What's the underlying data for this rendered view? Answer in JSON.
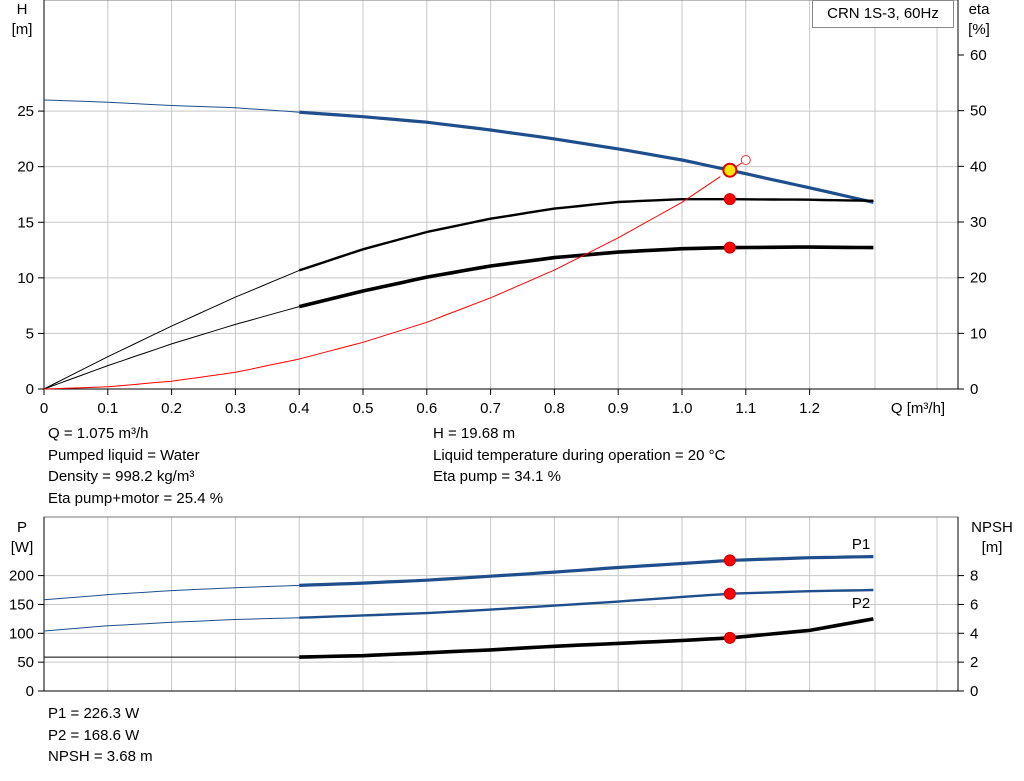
{
  "model_label": "CRN 1S-3, 60Hz",
  "chart_data": [
    {
      "type": "line",
      "name": "performance",
      "xlabel": "Q [m³/h]",
      "ylabel_left": [
        "H",
        "[m]"
      ],
      "ylabel_right": [
        "eta",
        "[%]"
      ],
      "xlim": [
        0,
        1.4
      ],
      "ylim_left": [
        0,
        30
      ],
      "ylim_right": [
        0,
        65
      ],
      "x_ticks": [
        "0",
        "0.1",
        "0.2",
        "0.3",
        "0.4",
        "0.5",
        "0.6",
        "0.7",
        "0.8",
        "0.9",
        "1.0",
        "1.1",
        "1.2"
      ],
      "y_ticks_left": [
        "0",
        "5",
        "10",
        "15",
        "20",
        "25"
      ],
      "y_ticks_right": [
        "0",
        "10",
        "20",
        "30",
        "40",
        "50",
        "60"
      ],
      "grid": true,
      "series": [
        {
          "axis": "left",
          "color": "#1f4e8c",
          "values": [
            [
              0,
              26.0
            ],
            [
              0.1,
              25.8
            ],
            [
              0.2,
              25.5
            ],
            [
              0.3,
              25.3
            ],
            [
              0.4,
              24.9
            ],
            [
              0.5,
              24.5
            ],
            [
              0.6,
              24.0
            ],
            [
              0.7,
              23.3
            ],
            [
              0.8,
              22.5
            ],
            [
              0.9,
              21.6
            ],
            [
              1.0,
              20.6
            ],
            [
              1.075,
              19.68
            ],
            [
              1.2,
              18.1
            ],
            [
              1.3,
              16.8
            ]
          ]
        },
        {
          "axis": "right",
          "color": "#000000",
          "values": [
            [
              0,
              0
            ],
            [
              0.1,
              5.8
            ],
            [
              0.2,
              11.3
            ],
            [
              0.3,
              16.5
            ],
            [
              0.4,
              21.3
            ],
            [
              0.5,
              25.1
            ],
            [
              0.6,
              28.2
            ],
            [
              0.7,
              30.6
            ],
            [
              0.8,
              32.4
            ],
            [
              0.9,
              33.6
            ],
            [
              1.0,
              34.1
            ],
            [
              1.075,
              34.1
            ],
            [
              1.2,
              34.0
            ],
            [
              1.3,
              33.8
            ]
          ]
        },
        {
          "axis": "right",
          "color": "#000000",
          "values": [
            [
              0,
              0
            ],
            [
              0.1,
              4.2
            ],
            [
              0.2,
              8.1
            ],
            [
              0.3,
              11.6
            ],
            [
              0.4,
              14.8
            ],
            [
              0.5,
              17.6
            ],
            [
              0.6,
              20.1
            ],
            [
              0.7,
              22.1
            ],
            [
              0.8,
              23.6
            ],
            [
              0.9,
              24.6
            ],
            [
              1.0,
              25.2
            ],
            [
              1.075,
              25.4
            ],
            [
              1.2,
              25.5
            ],
            [
              1.3,
              25.4
            ]
          ]
        },
        {
          "axis": "left",
          "color": "#ff0000",
          "values": [
            [
              0,
              0
            ],
            [
              0.1,
              0.2
            ],
            [
              0.2,
              0.7
            ],
            [
              0.3,
              1.5
            ],
            [
              0.4,
              2.7
            ],
            [
              0.5,
              4.2
            ],
            [
              0.6,
              6.0
            ],
            [
              0.7,
              8.2
            ],
            [
              0.8,
              10.7
            ],
            [
              0.9,
              13.6
            ],
            [
              1.0,
              16.8
            ],
            [
              1.075,
              19.68
            ]
          ]
        }
      ],
      "markers": [
        {
          "axis": "left",
          "x": 1.075,
          "y": 19.68,
          "kind": "duty-point"
        },
        {
          "axis": "right",
          "x": 1.075,
          "y": 34.1,
          "kind": "point"
        },
        {
          "axis": "right",
          "x": 1.075,
          "y": 25.4,
          "kind": "point"
        },
        {
          "axis": "left",
          "x": 1.1,
          "y": 20.6,
          "kind": "open-circle"
        }
      ]
    },
    {
      "type": "line",
      "name": "power-npsh",
      "ylabel_left": [
        "P",
        "[W]"
      ],
      "ylabel_right": [
        "NPSH",
        "[m]"
      ],
      "xlim": [
        0,
        1.4
      ],
      "ylim_left": [
        0,
        250
      ],
      "ylim_right": [
        0,
        10
      ],
      "y_ticks_left": [
        "0",
        "50",
        "100",
        "150",
        "200"
      ],
      "y_ticks_right": [
        "0",
        "2",
        "4",
        "6",
        "8"
      ],
      "grid": true,
      "series": [
        {
          "name": "P1",
          "axis": "left",
          "color": "#1f4e8c",
          "values": [
            [
              0,
              158
            ],
            [
              0.1,
              167
            ],
            [
              0.2,
              174
            ],
            [
              0.3,
              179
            ],
            [
              0.4,
              183
            ],
            [
              0.5,
              187
            ],
            [
              0.6,
              192
            ],
            [
              0.7,
              199
            ],
            [
              0.8,
              206
            ],
            [
              0.9,
              214
            ],
            [
              1.0,
              221
            ],
            [
              1.075,
              226.3
            ],
            [
              1.2,
              231
            ],
            [
              1.3,
              233
            ]
          ]
        },
        {
          "name": "P2",
          "axis": "left",
          "color": "#1f4e8c",
          "values": [
            [
              0,
              104
            ],
            [
              0.1,
              113
            ],
            [
              0.2,
              119
            ],
            [
              0.3,
              124
            ],
            [
              0.4,
              127
            ],
            [
              0.5,
              131
            ],
            [
              0.6,
              135
            ],
            [
              0.7,
              141
            ],
            [
              0.8,
              148
            ],
            [
              0.9,
              155
            ],
            [
              1.0,
              163
            ],
            [
              1.075,
              168.6
            ],
            [
              1.2,
              173
            ],
            [
              1.3,
              175
            ]
          ]
        },
        {
          "axis": "right",
          "color": "#000000",
          "values": [
            [
              0,
              2.35
            ],
            [
              0.3,
              2.35
            ],
            [
              0.4,
              2.35
            ],
            [
              0.5,
              2.45
            ],
            [
              0.6,
              2.65
            ],
            [
              0.7,
              2.85
            ],
            [
              0.8,
              3.1
            ],
            [
              0.9,
              3.3
            ],
            [
              1.0,
              3.5
            ],
            [
              1.075,
              3.68
            ],
            [
              1.2,
              4.2
            ],
            [
              1.3,
              5.0
            ]
          ]
        }
      ],
      "markers": [
        {
          "axis": "left",
          "x": 1.075,
          "y": 226.3,
          "kind": "point"
        },
        {
          "axis": "left",
          "x": 1.075,
          "y": 168.6,
          "kind": "point"
        },
        {
          "axis": "right",
          "x": 1.075,
          "y": 3.68,
          "kind": "point"
        }
      ]
    }
  ],
  "info_left_top": [
    "Q = 1.075 m³/h",
    "Pumped liquid = Water",
    "Density = 998.2 kg/m³",
    "Eta pump+motor = 25.4 %"
  ],
  "info_right_top": [
    "H = 19.68 m",
    "Liquid temperature during operation = 20 °C",
    "Eta pump = 34.1 %"
  ],
  "info_bottom": [
    "P1 = 226.3 W",
    "P2 = 168.6 W",
    "NPSH = 3.68 m"
  ]
}
